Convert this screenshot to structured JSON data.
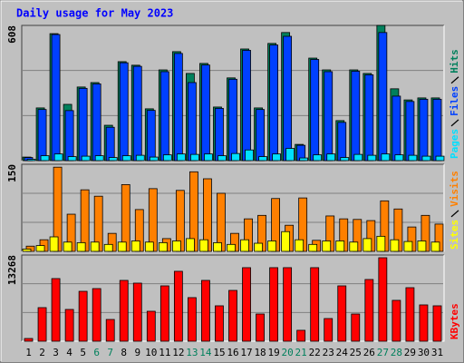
{
  "chart_data": [
    {
      "type": "bar",
      "title": "Daily usage for May 2023",
      "ylim": [
        0,
        608
      ],
      "yticks": [
        608
      ],
      "series": [
        {
          "name": "Hits",
          "color": "#00805c",
          "values": [
            16,
            237,
            571,
            253,
            331,
            351,
            159,
            445,
            429,
            233,
            408,
            490,
            392,
            437,
            241,
            372,
            502,
            237,
            527,
            576,
            73,
            461,
            408,
            180,
            408,
            392,
            608,
            323,
            273,
            282,
            282
          ]
        },
        {
          "name": "Files",
          "color": "#0040ff",
          "values": [
            14,
            230,
            567,
            225,
            325,
            345,
            150,
            440,
            424,
            226,
            400,
            482,
            351,
            430,
            235,
            366,
            496,
            230,
            520,
            559,
            69,
            455,
            400,
            172,
            402,
            386,
            576,
            290,
            266,
            276,
            276
          ]
        },
        {
          "name": "Pages",
          "color": "#00e0ff",
          "values": [
            6,
            22,
            30,
            18,
            20,
            22,
            14,
            22,
            24,
            16,
            26,
            30,
            28,
            30,
            22,
            32,
            48,
            18,
            30,
            55,
            12,
            26,
            30,
            14,
            28,
            24,
            30,
            26,
            24,
            20,
            20
          ]
        }
      ]
    },
    {
      "type": "bar",
      "ylim": [
        0,
        150
      ],
      "yticks": [
        150
      ],
      "series": [
        {
          "name": "Visits",
          "color": "#ff8000",
          "values": [
            9,
            20,
            145,
            64,
            106,
            95,
            31,
            115,
            72,
            108,
            22,
            105,
            137,
            125,
            100,
            31,
            56,
            62,
            91,
            45,
            92,
            19,
            61,
            56,
            55,
            53,
            87,
            73,
            42,
            62,
            47
          ]
        },
        {
          "name": "Sites",
          "color": "#ffff00",
          "values": [
            4,
            10,
            25,
            16,
            15,
            16,
            12,
            16,
            18,
            16,
            15,
            18,
            22,
            20,
            15,
            12,
            20,
            14,
            18,
            34,
            20,
            12,
            18,
            18,
            16,
            22,
            26,
            20,
            17,
            18,
            16
          ]
        }
      ]
    },
    {
      "type": "bar",
      "ylim": [
        0,
        13268
      ],
      "yticks": [
        13268
      ],
      "categories": [
        "1",
        "2",
        "3",
        "4",
        "5",
        "6",
        "7",
        "8",
        "9",
        "10",
        "11",
        "12",
        "13",
        "14",
        "15",
        "16",
        "17",
        "18",
        "19",
        "20",
        "21",
        "22",
        "23",
        "24",
        "25",
        "26",
        "27",
        "28",
        "29",
        "30",
        "31"
      ],
      "category_colors": [
        "#000000",
        "#000000",
        "#000000",
        "#000000",
        "#000000",
        "#00805c",
        "#00805c",
        "#000000",
        "#000000",
        "#000000",
        "#000000",
        "#000000",
        "#00805c",
        "#00805c",
        "#000000",
        "#000000",
        "#000000",
        "#000000",
        "#000000",
        "#00805c",
        "#00805c",
        "#000000",
        "#000000",
        "#000000",
        "#000000",
        "#000000",
        "#00805c",
        "#00805c",
        "#000000",
        "#000000",
        "#000000"
      ],
      "series": [
        {
          "name": "KBytes",
          "color": "#ff0000",
          "values": [
            420,
            5170,
            9640,
            4890,
            7680,
            8100,
            3350,
            9360,
            8940,
            4610,
            8520,
            10760,
            6710,
            9360,
            5450,
            7820,
            11320,
            4190,
            11320,
            11320,
            1680,
            11320,
            3490,
            8520,
            4190,
            9500,
            12850,
            6290,
            8240,
            5590,
            5450
          ]
        }
      ]
    }
  ]
}
